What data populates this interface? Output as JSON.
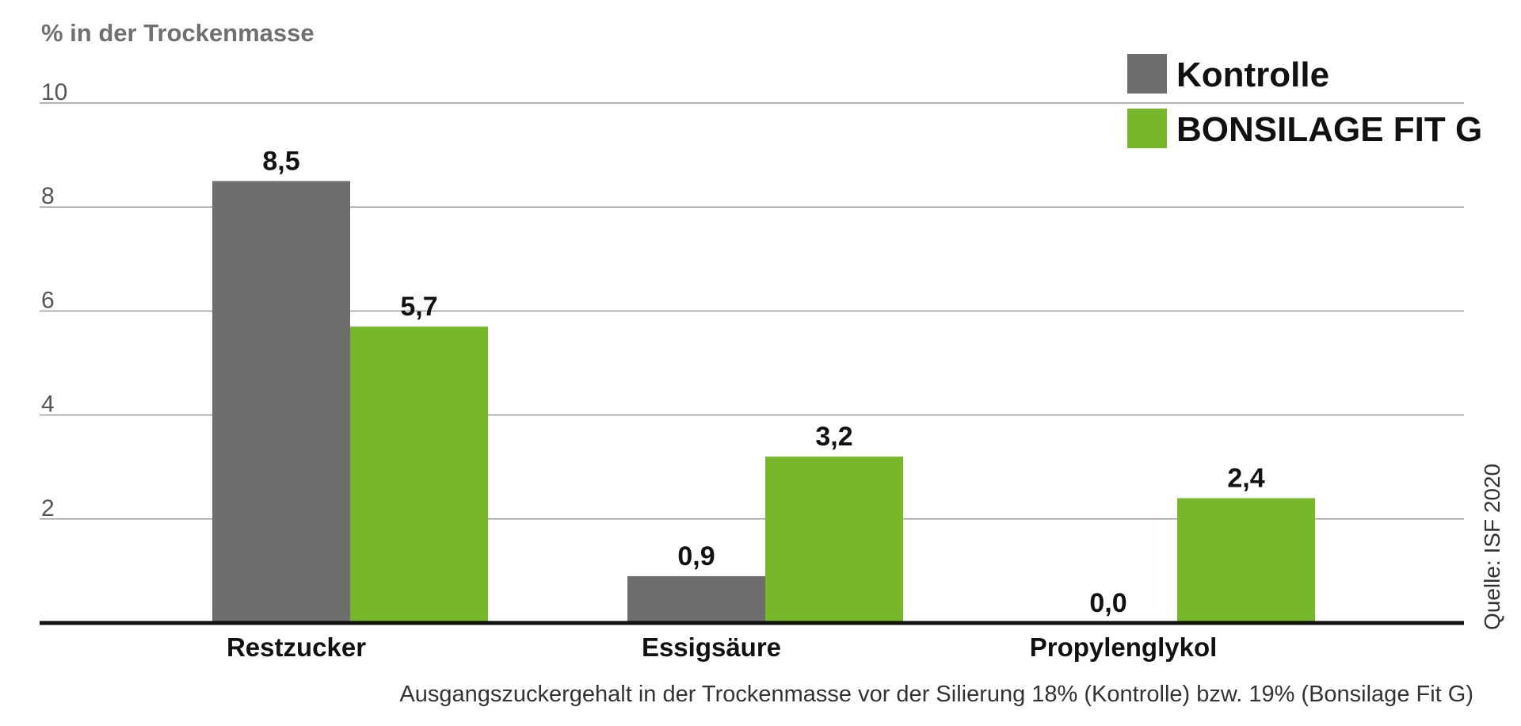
{
  "chart_data": {
    "type": "bar",
    "ylabel": "% in der Trockenmasse",
    "ylim": [
      0,
      10
    ],
    "yticks": [
      2,
      4,
      6,
      8,
      10
    ],
    "grid": true,
    "legend_position": "top-right",
    "categories": [
      "Restzucker",
      "Essigsäure",
      "Propylenglykol"
    ],
    "series": [
      {
        "name": "Kontrolle",
        "color": "#6e6e6e",
        "values": [
          8.5,
          0.9,
          0.0
        ],
        "labels": [
          "8,5",
          "0,9",
          "0,0"
        ]
      },
      {
        "name": "BONSILAGE FIT G",
        "color": "#76b82a",
        "values": [
          5.7,
          3.2,
          2.4
        ],
        "labels": [
          "5,7",
          "3,2",
          "2,4"
        ]
      }
    ],
    "note": "Ausgangszuckergehalt in der Trockenmasse vor der Silierung 18% (Kontrolle) bzw. 19% (Bonsilage Fit G)",
    "source": "Quelle: ISF 2020"
  }
}
